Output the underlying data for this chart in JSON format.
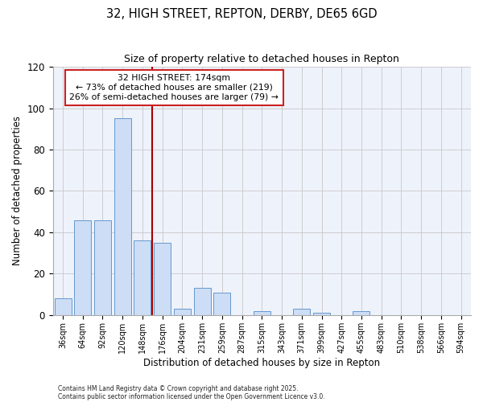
{
  "title": "32, HIGH STREET, REPTON, DERBY, DE65 6GD",
  "subtitle": "Size of property relative to detached houses in Repton",
  "xlabel": "Distribution of detached houses by size in Repton",
  "ylabel": "Number of detached properties",
  "bar_labels": [
    "36sqm",
    "64sqm",
    "92sqm",
    "120sqm",
    "148sqm",
    "176sqm",
    "204sqm",
    "231sqm",
    "259sqm",
    "287sqm",
    "315sqm",
    "343sqm",
    "371sqm",
    "399sqm",
    "427sqm",
    "455sqm",
    "483sqm",
    "510sqm",
    "538sqm",
    "566sqm",
    "594sqm"
  ],
  "bar_values": [
    8,
    46,
    46,
    95,
    36,
    35,
    3,
    13,
    11,
    0,
    2,
    0,
    3,
    1,
    0,
    2,
    0,
    0,
    0,
    0,
    0
  ],
  "bar_color": "#ccddf5",
  "bar_edge_color": "#6699cc",
  "vline_color": "#aa0000",
  "annotation_line1": "32 HIGH STREET: 174sqm",
  "annotation_line2": "← 73% of detached houses are smaller (219)",
  "annotation_line3": "26% of semi-detached houses are larger (79) →",
  "ylim": [
    0,
    120
  ],
  "yticks": [
    0,
    20,
    40,
    60,
    80,
    100,
    120
  ],
  "bg_color": "#eef2fb",
  "grid_color": "#c8c8c8",
  "footer1": "Contains HM Land Registry data © Crown copyright and database right 2025.",
  "footer2": "Contains public sector information licensed under the Open Government Licence v3.0."
}
